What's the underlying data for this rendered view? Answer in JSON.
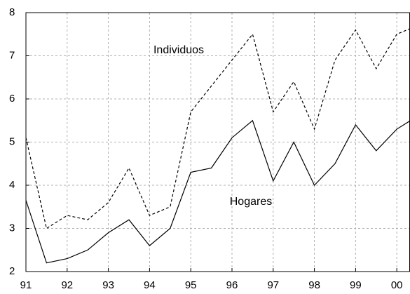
{
  "chart_data": {
    "type": "line",
    "x": [
      91,
      91.5,
      92,
      92.5,
      93,
      93.5,
      94,
      94.5,
      95,
      95.5,
      96,
      96.5,
      97,
      97.5,
      98,
      98.5,
      99,
      99.5,
      100,
      100.5
    ],
    "series": [
      {
        "name": "Individuos",
        "color": "#000000",
        "dash": true,
        "values": [
          5.1,
          3.0,
          3.3,
          3.2,
          3.6,
          4.4,
          3.3,
          3.5,
          5.7,
          6.3,
          6.9,
          7.5,
          5.7,
          6.4,
          5.3,
          6.9,
          7.6,
          6.7,
          7.5,
          7.7
        ]
      },
      {
        "name": "Hogares",
        "color": "#000000",
        "dash": false,
        "values": [
          3.65,
          2.2,
          2.3,
          2.5,
          2.9,
          3.2,
          2.6,
          3.0,
          4.3,
          4.4,
          5.1,
          5.5,
          4.1,
          5.0,
          4.0,
          4.5,
          5.4,
          4.8,
          5.3,
          5.6
        ]
      }
    ],
    "xlim": [
      91,
      100.32
    ],
    "xticks": [
      91,
      92,
      93,
      94,
      95,
      96,
      97,
      98,
      99,
      {
        "value": 100,
        "label": "00"
      }
    ],
    "ylim": [
      2,
      8
    ],
    "yticks": [
      2,
      3,
      4,
      5,
      6,
      7,
      8
    ],
    "grid": true
  }
}
